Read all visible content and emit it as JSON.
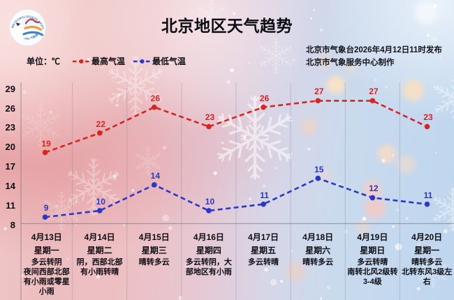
{
  "header": {
    "title": "北京地区天气趋势",
    "logo": {
      "name": "beijing-meteorological-service-logo",
      "ring_text_top": "METEOROLOGICAL SERVICE",
      "ring_text_bottom": "BEIJING 气象服务"
    },
    "source_line1": "北京市气象台2026年4月12日11时发布",
    "source_line2": "北京市气象服务中心制作"
  },
  "legend": {
    "unit_label": "单位：℃",
    "series": [
      {
        "label": "最高气温",
        "color": "#d92420"
      },
      {
        "label": "最低气温",
        "color": "#2838cb"
      }
    ]
  },
  "chart_data": {
    "type": "line",
    "title": "北京地区天气趋势",
    "unit": "℃",
    "y_ticks": [
      29,
      26,
      23,
      20,
      17,
      14,
      11,
      8
    ],
    "ylim": [
      8,
      29
    ],
    "grid": true,
    "legend_position": "top-left",
    "line_style": "dashed",
    "categories": [
      "4月13日",
      "4月14日",
      "4月15日",
      "4月16日",
      "4月17日",
      "4月18日",
      "4月19日",
      "4月20日"
    ],
    "weekdays": [
      "星期一",
      "星期二",
      "星期三",
      "星期四",
      "星期五",
      "星期六",
      "星期日",
      "星期一"
    ],
    "conditions": [
      [
        "多云转阴",
        "夜间西部北部",
        "有小雨或零星",
        "小雨"
      ],
      [
        "阴，西部北部",
        "有小雨转晴"
      ],
      [
        "晴转多云"
      ],
      [
        "多云转阴，大",
        "部地区有小雨"
      ],
      [
        "多云转晴"
      ],
      [
        "晴转多云"
      ],
      [
        "多云转晴",
        "南转北风2级转",
        "3-4级"
      ],
      [
        "晴转多云",
        "北转东风3级左",
        "右"
      ]
    ],
    "series": [
      {
        "name": "最高气温",
        "color": "#d92420",
        "values": [
          19,
          22,
          26,
          23,
          26,
          27,
          27,
          23
        ]
      },
      {
        "name": "最低气温",
        "color": "#2838cb",
        "values": [
          9,
          10,
          14,
          10,
          11,
          15,
          12,
          11
        ]
      }
    ]
  }
}
